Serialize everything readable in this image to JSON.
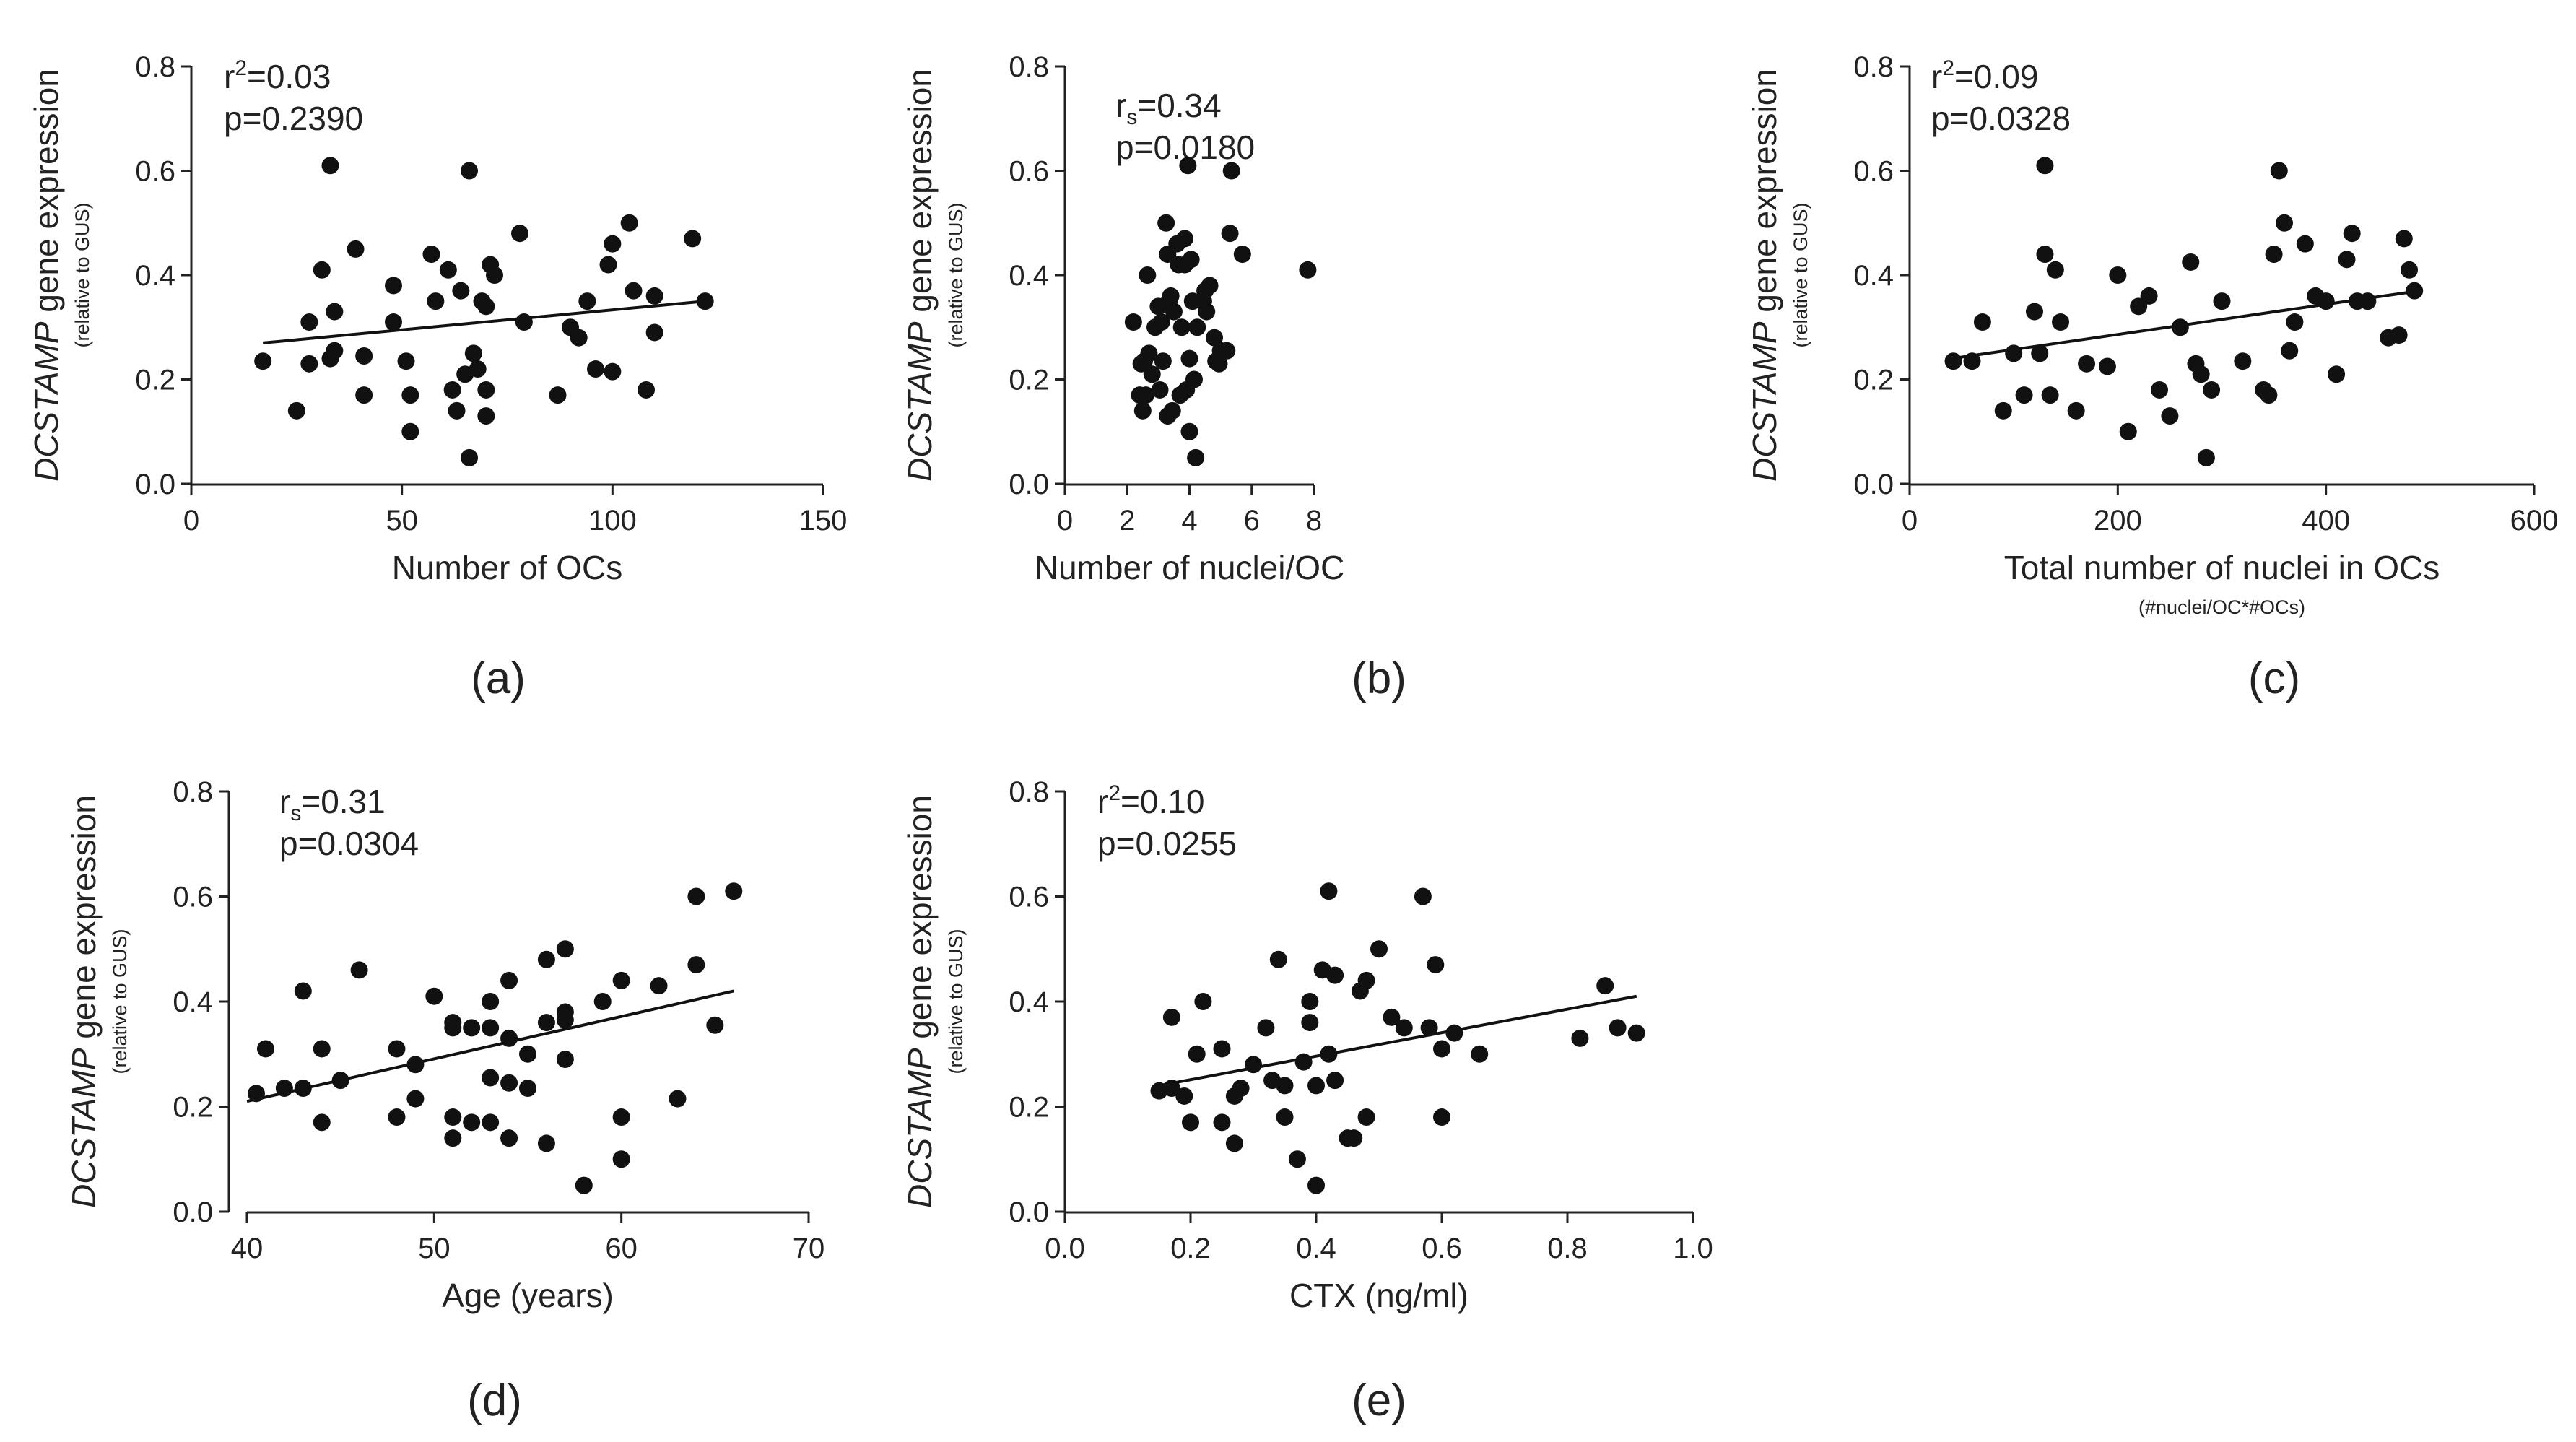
{
  "colors": {
    "points": "#111111",
    "axes": "#222222",
    "text": "#222222",
    "background": "#ffffff"
  },
  "chart_data": [
    {
      "id": "a",
      "type": "scatter",
      "panel_label": "(a)",
      "title": "",
      "xlabel": "Number of OCs",
      "xsublabel": "",
      "ylabel_gene": "DCSTAMP",
      "ylabel_rest": " gene expression",
      "ylabel_sub": "(relative to GUS)",
      "xlim": [
        0,
        150
      ],
      "xticks": [
        0,
        50,
        100,
        150
      ],
      "xtick_labels": [
        "0",
        "50",
        "100",
        "150"
      ],
      "ylim": [
        0,
        0.8
      ],
      "yticks": [
        0,
        0.2,
        0.4,
        0.6,
        0.8
      ],
      "ytick_labels": [
        "0.0",
        "0.2",
        "0.4",
        "0.6",
        "0.8"
      ],
      "stat_line1": {
        "base": "r",
        "mark": "2",
        "mark_type": "super",
        "value": "=0.03"
      },
      "stat_line2": "p=0.2390",
      "fit": {
        "x1": 17,
        "y1": 0.27,
        "x2": 122,
        "y2": 0.35
      },
      "points": [
        [
          17,
          0.235
        ],
        [
          25,
          0.14
        ],
        [
          28,
          0.31
        ],
        [
          28,
          0.23
        ],
        [
          31,
          0.41
        ],
        [
          33,
          0.61
        ],
        [
          33,
          0.24
        ],
        [
          34,
          0.33
        ],
        [
          34,
          0.255
        ],
        [
          39,
          0.45
        ],
        [
          41,
          0.245
        ],
        [
          41,
          0.17
        ],
        [
          48,
          0.38
        ],
        [
          48,
          0.31
        ],
        [
          51,
          0.235
        ],
        [
          52,
          0.1
        ],
        [
          52,
          0.17
        ],
        [
          57,
          0.44
        ],
        [
          58,
          0.35
        ],
        [
          61,
          0.41
        ],
        [
          62,
          0.18
        ],
        [
          63,
          0.14
        ],
        [
          64,
          0.37
        ],
        [
          65,
          0.21
        ],
        [
          66,
          0.6
        ],
        [
          66,
          0.05
        ],
        [
          67,
          0.25
        ],
        [
          68,
          0.22
        ],
        [
          69,
          0.35
        ],
        [
          70,
          0.34
        ],
        [
          70,
          0.13
        ],
        [
          70,
          0.18
        ],
        [
          71,
          0.42
        ],
        [
          72,
          0.4
        ],
        [
          78,
          0.48
        ],
        [
          79,
          0.31
        ],
        [
          87,
          0.17
        ],
        [
          90,
          0.3
        ],
        [
          92,
          0.28
        ],
        [
          94,
          0.35
        ],
        [
          96,
          0.22
        ],
        [
          99,
          0.42
        ],
        [
          100,
          0.46
        ],
        [
          100,
          0.215
        ],
        [
          104,
          0.5
        ],
        [
          105,
          0.37
        ],
        [
          108,
          0.18
        ],
        [
          110,
          0.36
        ],
        [
          110,
          0.29
        ],
        [
          119,
          0.47
        ],
        [
          122,
          0.35
        ]
      ]
    },
    {
      "id": "b",
      "type": "scatter",
      "panel_label": "(b)",
      "title": "",
      "xlabel": "Number of nuclei/OC",
      "xsublabel": "",
      "ylabel_gene": "DCSTAMP",
      "ylabel_rest": " gene expression",
      "ylabel_sub": "(relative to GUS)",
      "xlim": [
        0,
        8
      ],
      "xticks": [
        0,
        2,
        4,
        6,
        8
      ],
      "xtick_labels": [
        "0",
        "2",
        "4",
        "6",
        "8"
      ],
      "ylim": [
        0,
        0.8
      ],
      "yticks": [
        0,
        0.2,
        0.4,
        0.6,
        0.8
      ],
      "ytick_labels": [
        "0.0",
        "0.2",
        "0.4",
        "0.6",
        "0.8"
      ],
      "stat_line1": {
        "base": "r",
        "mark": "s",
        "mark_type": "sub",
        "value": "=0.34"
      },
      "stat_line2": "p=0.0180",
      "fit": null,
      "points": [
        [
          2.2,
          0.31
        ],
        [
          2.4,
          0.17
        ],
        [
          2.45,
          0.23
        ],
        [
          2.5,
          0.14
        ],
        [
          2.55,
          0.235
        ],
        [
          2.6,
          0.17
        ],
        [
          2.65,
          0.4
        ],
        [
          2.7,
          0.25
        ],
        [
          2.8,
          0.21
        ],
        [
          2.9,
          0.3
        ],
        [
          3.0,
          0.34
        ],
        [
          3.05,
          0.18
        ],
        [
          3.1,
          0.31
        ],
        [
          3.15,
          0.235
        ],
        [
          3.25,
          0.5
        ],
        [
          3.3,
          0.44
        ],
        [
          3.3,
          0.13
        ],
        [
          3.35,
          0.35
        ],
        [
          3.4,
          0.36
        ],
        [
          3.45,
          0.14
        ],
        [
          3.5,
          0.33
        ],
        [
          3.6,
          0.46
        ],
        [
          3.65,
          0.42
        ],
        [
          3.7,
          0.17
        ],
        [
          3.75,
          0.3
        ],
        [
          3.85,
          0.47
        ],
        [
          3.85,
          0.42
        ],
        [
          3.9,
          0.18
        ],
        [
          3.95,
          0.61
        ],
        [
          4.0,
          0.24
        ],
        [
          4.0,
          0.1
        ],
        [
          4.05,
          0.43
        ],
        [
          4.1,
          0.35
        ],
        [
          4.15,
          0.2
        ],
        [
          4.2,
          0.05
        ],
        [
          4.25,
          0.3
        ],
        [
          4.45,
          0.35
        ],
        [
          4.5,
          0.37
        ],
        [
          4.55,
          0.33
        ],
        [
          4.65,
          0.38
        ],
        [
          4.8,
          0.28
        ],
        [
          4.85,
          0.235
        ],
        [
          4.95,
          0.23
        ],
        [
          5.0,
          0.255
        ],
        [
          5.2,
          0.255
        ],
        [
          5.3,
          0.48
        ],
        [
          5.35,
          0.6
        ],
        [
          5.7,
          0.44
        ],
        [
          7.8,
          0.41
        ]
      ]
    },
    {
      "id": "c",
      "type": "scatter",
      "panel_label": "(c)",
      "title": "",
      "xlabel": "Total number of nuclei in OCs",
      "xsublabel": "(#nuclei/OC*#OCs)",
      "ylabel_gene": "DCSTAMP",
      "ylabel_rest": " gene expression",
      "ylabel_sub": "(relative to GUS)",
      "xlim": [
        0,
        600
      ],
      "xticks": [
        0,
        200,
        400,
        600
      ],
      "xtick_labels": [
        "0",
        "200",
        "400",
        "600"
      ],
      "ylim": [
        0,
        0.8
      ],
      "yticks": [
        0,
        0.2,
        0.4,
        0.6,
        0.8
      ],
      "ytick_labels": [
        "0.0",
        "0.2",
        "0.4",
        "0.6",
        "0.8"
      ],
      "stat_line1": {
        "base": "r",
        "mark": "2",
        "mark_type": "super",
        "value": "=0.09"
      },
      "stat_line2": "p=0.0328",
      "fit": {
        "x1": 40,
        "y1": 0.24,
        "x2": 490,
        "y2": 0.37
      },
      "points": [
        [
          42,
          0.235
        ],
        [
          60,
          0.235
        ],
        [
          70,
          0.31
        ],
        [
          90,
          0.14
        ],
        [
          100,
          0.25
        ],
        [
          110,
          0.17
        ],
        [
          120,
          0.33
        ],
        [
          125,
          0.25
        ],
        [
          130,
          0.44
        ],
        [
          130,
          0.61
        ],
        [
          135,
          0.17
        ],
        [
          140,
          0.41
        ],
        [
          145,
          0.31
        ],
        [
          160,
          0.14
        ],
        [
          170,
          0.23
        ],
        [
          190,
          0.225
        ],
        [
          200,
          0.4
        ],
        [
          210,
          0.1
        ],
        [
          220,
          0.34
        ],
        [
          230,
          0.36
        ],
        [
          240,
          0.18
        ],
        [
          250,
          0.13
        ],
        [
          260,
          0.3
        ],
        [
          270,
          0.425
        ],
        [
          275,
          0.23
        ],
        [
          280,
          0.21
        ],
        [
          285,
          0.05
        ],
        [
          290,
          0.18
        ],
        [
          300,
          0.35
        ],
        [
          320,
          0.235
        ],
        [
          340,
          0.18
        ],
        [
          345,
          0.17
        ],
        [
          350,
          0.44
        ],
        [
          355,
          0.6
        ],
        [
          360,
          0.5
        ],
        [
          365,
          0.255
        ],
        [
          370,
          0.31
        ],
        [
          380,
          0.46
        ],
        [
          390,
          0.36
        ],
        [
          400,
          0.35
        ],
        [
          410,
          0.21
        ],
        [
          420,
          0.43
        ],
        [
          425,
          0.48
        ],
        [
          430,
          0.35
        ],
        [
          440,
          0.35
        ],
        [
          460,
          0.28
        ],
        [
          470,
          0.285
        ],
        [
          475,
          0.47
        ],
        [
          480,
          0.41
        ],
        [
          485,
          0.37
        ]
      ]
    },
    {
      "id": "d",
      "type": "scatter",
      "panel_label": "(d)",
      "title": "",
      "xlabel": "Age (years)",
      "xsublabel": "",
      "ylabel_gene": "DCSTAMP",
      "ylabel_rest": " gene expression",
      "ylabel_sub": "(relative to GUS)",
      "xlim": [
        40,
        70
      ],
      "xticks": [
        40,
        50,
        60,
        70
      ],
      "xtick_labels": [
        "40",
        "50",
        "60",
        "70"
      ],
      "ylim": [
        0,
        0.8
      ],
      "yticks": [
        0,
        0.2,
        0.4,
        0.6,
        0.8
      ],
      "ytick_labels": [
        "0.0",
        "0.2",
        "0.4",
        "0.6",
        "0.8"
      ],
      "stat_line1": {
        "base": "r",
        "mark": "s",
        "mark_type": "sub",
        "value": "=0.31"
      },
      "stat_line2": "p=0.0304",
      "fit": {
        "x1": 40,
        "y1": 0.21,
        "x2": 66,
        "y2": 0.42
      },
      "points": [
        [
          40.5,
          0.225
        ],
        [
          41,
          0.31
        ],
        [
          42,
          0.235
        ],
        [
          43,
          0.42
        ],
        [
          43,
          0.235
        ],
        [
          44,
          0.31
        ],
        [
          44,
          0.17
        ],
        [
          45,
          0.25
        ],
        [
          46,
          0.46
        ],
        [
          48,
          0.31
        ],
        [
          48,
          0.18
        ],
        [
          49,
          0.215
        ],
        [
          49,
          0.28
        ],
        [
          50,
          0.41
        ],
        [
          51,
          0.14
        ],
        [
          51,
          0.18
        ],
        [
          51,
          0.36
        ],
        [
          51,
          0.35
        ],
        [
          52,
          0.17
        ],
        [
          52,
          0.35
        ],
        [
          53,
          0.4
        ],
        [
          53,
          0.35
        ],
        [
          53,
          0.255
        ],
        [
          53,
          0.17
        ],
        [
          54,
          0.44
        ],
        [
          54,
          0.33
        ],
        [
          54,
          0.14
        ],
        [
          54,
          0.245
        ],
        [
          55,
          0.3
        ],
        [
          55,
          0.235
        ],
        [
          56,
          0.48
        ],
        [
          56,
          0.13
        ],
        [
          56,
          0.36
        ],
        [
          57,
          0.5
        ],
        [
          57,
          0.365
        ],
        [
          57,
          0.38
        ],
        [
          57,
          0.29
        ],
        [
          58,
          0.05
        ],
        [
          59,
          0.4
        ],
        [
          60,
          0.44
        ],
        [
          60,
          0.18
        ],
        [
          60,
          0.1
        ],
        [
          62,
          0.43
        ],
        [
          63,
          0.215
        ],
        [
          64,
          0.6
        ],
        [
          64,
          0.47
        ],
        [
          65,
          0.355
        ],
        [
          66,
          0.61
        ]
      ]
    },
    {
      "id": "e",
      "type": "scatter",
      "panel_label": "(e)",
      "title": "",
      "xlabel": "CTX (ng/ml)",
      "xsublabel": "",
      "ylabel_gene": "DCSTAMP",
      "ylabel_rest": " gene expression",
      "ylabel_sub": "(relative to GUS)",
      "xlim": [
        0,
        1.0
      ],
      "xticks": [
        0,
        0.2,
        0.4,
        0.6,
        0.8,
        1.0
      ],
      "xtick_labels": [
        "0.0",
        "0.2",
        "0.4",
        "0.6",
        "0.8",
        "1.0"
      ],
      "ylim": [
        0,
        0.8
      ],
      "yticks": [
        0,
        0.2,
        0.4,
        0.6,
        0.8
      ],
      "ytick_labels": [
        "0.0",
        "0.2",
        "0.4",
        "0.6",
        "0.8"
      ],
      "stat_line1": {
        "base": "r",
        "mark": "2",
        "mark_type": "super",
        "value": "=0.10"
      },
      "stat_line2": "p=0.0255",
      "fit": {
        "x1": 0.15,
        "y1": 0.24,
        "x2": 0.91,
        "y2": 0.41
      },
      "points": [
        [
          0.15,
          0.23
        ],
        [
          0.17,
          0.37
        ],
        [
          0.17,
          0.235
        ],
        [
          0.19,
          0.22
        ],
        [
          0.2,
          0.17
        ],
        [
          0.21,
          0.3
        ],
        [
          0.22,
          0.4
        ],
        [
          0.25,
          0.31
        ],
        [
          0.25,
          0.17
        ],
        [
          0.27,
          0.13
        ],
        [
          0.27,
          0.22
        ],
        [
          0.28,
          0.235
        ],
        [
          0.3,
          0.28
        ],
        [
          0.32,
          0.35
        ],
        [
          0.33,
          0.25
        ],
        [
          0.34,
          0.48
        ],
        [
          0.35,
          0.24
        ],
        [
          0.35,
          0.18
        ],
        [
          0.37,
          0.1
        ],
        [
          0.38,
          0.285
        ],
        [
          0.39,
          0.36
        ],
        [
          0.39,
          0.4
        ],
        [
          0.4,
          0.05
        ],
        [
          0.4,
          0.24
        ],
        [
          0.41,
          0.46
        ],
        [
          0.42,
          0.3
        ],
        [
          0.42,
          0.61
        ],
        [
          0.43,
          0.25
        ],
        [
          0.43,
          0.45
        ],
        [
          0.45,
          0.14
        ],
        [
          0.46,
          0.14
        ],
        [
          0.47,
          0.42
        ],
        [
          0.48,
          0.44
        ],
        [
          0.48,
          0.18
        ],
        [
          0.5,
          0.5
        ],
        [
          0.52,
          0.37
        ],
        [
          0.54,
          0.35
        ],
        [
          0.57,
          0.6
        ],
        [
          0.58,
          0.35
        ],
        [
          0.59,
          0.47
        ],
        [
          0.6,
          0.18
        ],
        [
          0.6,
          0.31
        ],
        [
          0.62,
          0.34
        ],
        [
          0.66,
          0.3
        ],
        [
          0.82,
          0.33
        ],
        [
          0.86,
          0.43
        ],
        [
          0.88,
          0.35
        ],
        [
          0.91,
          0.34
        ]
      ]
    }
  ]
}
